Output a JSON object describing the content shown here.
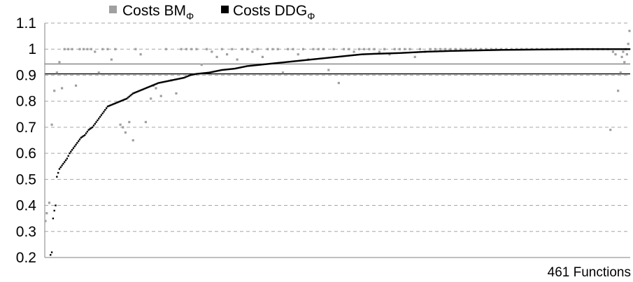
{
  "chart_data": {
    "type": "scatter",
    "xlabel": "461 Functions",
    "ylim": [
      0.2,
      1.1
    ],
    "yticks": [
      "0.2",
      "0.3",
      "0.4",
      "0.5",
      "0.6",
      "0.7",
      "0.8",
      "0.9",
      "1",
      "1.1"
    ],
    "grid": true,
    "legend_position": "top",
    "x_count": 461,
    "reference_lines": [
      0.943,
      0.905
    ],
    "series": [
      {
        "name": "Costs BM",
        "name_sub": "Φ",
        "color": "#a0a0a0",
        "marker": "square",
        "points": [
          [
            1,
            0.34
          ],
          [
            2,
            0.37
          ],
          [
            4,
            0.41
          ],
          [
            6,
            0.71
          ],
          [
            8,
            0.84
          ],
          [
            10,
            0.91
          ],
          [
            12,
            0.95
          ],
          [
            14,
            0.85
          ],
          [
            16,
            1.0
          ],
          [
            19,
            1.0
          ],
          [
            22,
            1.0
          ],
          [
            25,
            0.86
          ],
          [
            28,
            1.0
          ],
          [
            31,
            1.0
          ],
          [
            34,
            1.0
          ],
          [
            37,
            1.0
          ],
          [
            40,
            0.99
          ],
          [
            43,
            0.91
          ],
          [
            46,
            1.0
          ],
          [
            50,
            1.0
          ],
          [
            53,
            0.96
          ],
          [
            56,
            1.0
          ],
          [
            60,
            0.71
          ],
          [
            62,
            0.7
          ],
          [
            64,
            0.68
          ],
          [
            67,
            0.72
          ],
          [
            70,
            0.65
          ],
          [
            72,
            1.0
          ],
          [
            76,
            0.98
          ],
          [
            80,
            0.72
          ],
          [
            84,
            0.81
          ],
          [
            86,
            0.86
          ],
          [
            88,
            0.85
          ],
          [
            92,
            0.82
          ],
          [
            96,
            1.0
          ],
          [
            100,
            0.88
          ],
          [
            104,
            0.83
          ],
          [
            108,
            1.0
          ],
          [
            112,
            1.0
          ],
          [
            116,
            1.0
          ],
          [
            120,
            1.0
          ],
          [
            124,
            0.94
          ],
          [
            128,
            1.0
          ],
          [
            132,
            0.99
          ],
          [
            136,
            0.97
          ],
          [
            140,
            1.0
          ],
          [
            144,
            0.98
          ],
          [
            148,
            1.0
          ],
          [
            152,
            0.96
          ],
          [
            156,
            1.0
          ],
          [
            160,
            1.0
          ],
          [
            164,
            0.99
          ],
          [
            168,
            1.0
          ],
          [
            172,
            0.97
          ],
          [
            176,
            1.0
          ],
          [
            180,
            1.0
          ],
          [
            184,
            1.0
          ],
          [
            188,
            0.91
          ],
          [
            192,
            1.0
          ],
          [
            196,
            1.0
          ],
          [
            200,
            0.98
          ],
          [
            204,
            1.0
          ],
          [
            208,
            0.96
          ],
          [
            212,
            1.0
          ],
          [
            216,
            1.0
          ],
          [
            220,
            1.0
          ],
          [
            224,
            0.92
          ],
          [
            228,
            1.0
          ],
          [
            232,
            0.87
          ],
          [
            236,
            1.0
          ],
          [
            240,
            1.0
          ],
          [
            244,
            0.99
          ],
          [
            248,
            1.0
          ],
          [
            252,
            1.0
          ],
          [
            256,
            1.0
          ],
          [
            260,
            1.0
          ],
          [
            264,
            0.99
          ],
          [
            268,
            1.0
          ],
          [
            272,
            0.98
          ],
          [
            276,
            1.0
          ],
          [
            280,
            1.0
          ],
          [
            284,
            1.0
          ],
          [
            288,
            1.0
          ],
          [
            292,
            0.97
          ],
          [
            296,
            1.0
          ],
          [
            300,
            0.99
          ],
          [
            304,
            1.0
          ],
          [
            308,
            1.0
          ],
          [
            312,
            1.0
          ],
          [
            316,
            1.0
          ],
          [
            320,
            1.0
          ],
          [
            324,
            1.0
          ],
          [
            328,
            1.0
          ],
          [
            332,
            1.0
          ],
          [
            336,
            1.0
          ],
          [
            340,
            1.0
          ],
          [
            344,
            1.0
          ],
          [
            348,
            1.0
          ],
          [
            352,
            1.0
          ],
          [
            356,
            1.0
          ],
          [
            360,
            1.0
          ],
          [
            364,
            1.0
          ],
          [
            368,
            1.0
          ],
          [
            372,
            1.0
          ],
          [
            376,
            1.0
          ],
          [
            380,
            1.0
          ],
          [
            384,
            1.0
          ],
          [
            388,
            1.0
          ],
          [
            392,
            1.0
          ],
          [
            396,
            1.0
          ],
          [
            400,
            1.0
          ],
          [
            404,
            1.0
          ],
          [
            408,
            1.0
          ],
          [
            412,
            1.0
          ],
          [
            416,
            1.0
          ],
          [
            420,
            1.0
          ],
          [
            424,
            1.0
          ],
          [
            428,
            1.0
          ],
          [
            432,
            1.0
          ],
          [
            436,
            1.0
          ],
          [
            440,
            1.0
          ],
          [
            444,
            1.0
          ],
          [
            446,
            0.69
          ],
          [
            448,
            0.99
          ],
          [
            450,
            0.98
          ],
          [
            452,
            0.84
          ],
          [
            454,
            0.91
          ],
          [
            455,
            0.97
          ],
          [
            456,
            0.99
          ],
          [
            457,
            0.95
          ],
          [
            458,
            1.0
          ],
          [
            459,
            0.98
          ],
          [
            460,
            1.02
          ],
          [
            461,
            1.07
          ]
        ]
      },
      {
        "name": "Costs DDG",
        "name_sub": "Φ",
        "color": "#000000",
        "marker": "square",
        "curve": [
          [
            6,
            0.22
          ],
          [
            7,
            0.35
          ],
          [
            8,
            0.38
          ],
          [
            9,
            0.4
          ],
          [
            10,
            0.51
          ],
          [
            12,
            0.54
          ],
          [
            15,
            0.56
          ],
          [
            18,
            0.58
          ],
          [
            20,
            0.6
          ],
          [
            23,
            0.62
          ],
          [
            26,
            0.64
          ],
          [
            29,
            0.66
          ],
          [
            32,
            0.67
          ],
          [
            35,
            0.69
          ],
          [
            38,
            0.7
          ],
          [
            41,
            0.72
          ],
          [
            44,
            0.74
          ],
          [
            47,
            0.76
          ],
          [
            50,
            0.78
          ],
          [
            55,
            0.79
          ],
          [
            60,
            0.8
          ],
          [
            65,
            0.81
          ],
          [
            70,
            0.83
          ],
          [
            75,
            0.84
          ],
          [
            80,
            0.85
          ],
          [
            85,
            0.86
          ],
          [
            90,
            0.87
          ],
          [
            95,
            0.875
          ],
          [
            100,
            0.88
          ],
          [
            105,
            0.885
          ],
          [
            110,
            0.89
          ],
          [
            115,
            0.9
          ],
          [
            120,
            0.905
          ],
          [
            130,
            0.91
          ],
          [
            140,
            0.92
          ],
          [
            150,
            0.925
          ],
          [
            160,
            0.935
          ],
          [
            170,
            0.94
          ],
          [
            180,
            0.945
          ],
          [
            190,
            0.95
          ],
          [
            200,
            0.955
          ],
          [
            210,
            0.96
          ],
          [
            220,
            0.965
          ],
          [
            230,
            0.97
          ],
          [
            240,
            0.975
          ],
          [
            250,
            0.98
          ],
          [
            260,
            0.982
          ],
          [
            280,
            0.985
          ],
          [
            300,
            0.99
          ],
          [
            320,
            0.993
          ],
          [
            340,
            0.995
          ],
          [
            360,
            0.997
          ],
          [
            380,
            0.998
          ],
          [
            400,
            0.999
          ],
          [
            420,
            1.0
          ],
          [
            440,
            1.0
          ],
          [
            461,
            1.0
          ]
        ]
      }
    ]
  }
}
